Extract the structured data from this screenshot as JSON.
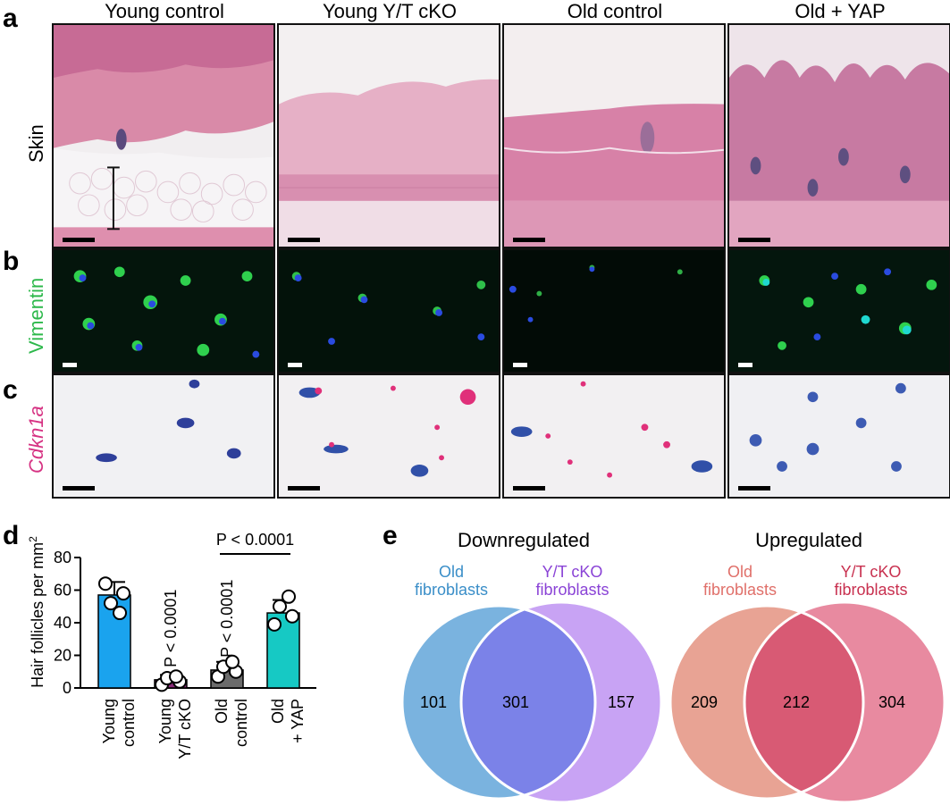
{
  "panels": {
    "a": "a",
    "b": "b",
    "c": "c",
    "d": "d",
    "e": "e"
  },
  "columns": [
    "Young control",
    "Young Y/T cKO",
    "Old control",
    "Old + YAP"
  ],
  "row_labels": {
    "skin": "Skin",
    "vimentin": "Vimentin",
    "cdkn1a": "Cdkn1a"
  },
  "colors": {
    "vimentin_label": "#2db84b",
    "cdkn1a_label": "#d63383",
    "young_control": "#1aa3ee",
    "young_ytcko": "#8b2a7a",
    "old_control": "#6b6b6b",
    "old_yap": "#16c9c4",
    "old_fibroblasts_down": "#3a8ec8",
    "ytcko_fibroblasts_down": "#8a43d6",
    "old_fibroblasts_up": "#e0706a",
    "ytcko_fibroblasts_up": "#c8304f"
  },
  "chart_data": {
    "type": "bar",
    "ylabel": "Hair follicles per mm",
    "ylabel_sup": "2",
    "ylim": [
      0,
      80
    ],
    "yticks": [
      "0",
      "20",
      "40",
      "60",
      "80"
    ],
    "categories": [
      "Young control",
      "Young Y/T cKO",
      "Old control",
      "Old + YAP"
    ],
    "category_lines": [
      [
        "Young",
        "control"
      ],
      [
        "Young",
        "Y/T cKO"
      ],
      [
        "Old",
        "control"
      ],
      [
        "Old",
        "+ YAP"
      ]
    ],
    "values": [
      57,
      5,
      11,
      46
    ],
    "errors": [
      8,
      3,
      5,
      8
    ],
    "points": [
      [
        64,
        58,
        52,
        46
      ],
      [
        2,
        4,
        6,
        7
      ],
      [
        7,
        10,
        13,
        16
      ],
      [
        39,
        44,
        50,
        56
      ]
    ],
    "annotations": [
      {
        "category": "Young Y/T cKO",
        "text": "P < 0.0001"
      },
      {
        "category": "Old control",
        "text": "P < 0.0001"
      }
    ],
    "bracket": {
      "from": "Old control",
      "to": "Old + YAP",
      "text": "P < 0.0001"
    }
  },
  "venn": [
    {
      "title": "Downregulated",
      "left_label": [
        "Old",
        "fibroblasts"
      ],
      "right_label": [
        "Y/T cKO",
        "fibroblasts"
      ],
      "left_only": "101",
      "overlap": "301",
      "right_only": "157"
    },
    {
      "title": "Upregulated",
      "left_label": [
        "Old",
        "fibroblasts"
      ],
      "right_label": [
        "Y/T cKO",
        "fibroblasts"
      ],
      "left_only": "209",
      "overlap": "212",
      "right_only": "304"
    }
  ]
}
